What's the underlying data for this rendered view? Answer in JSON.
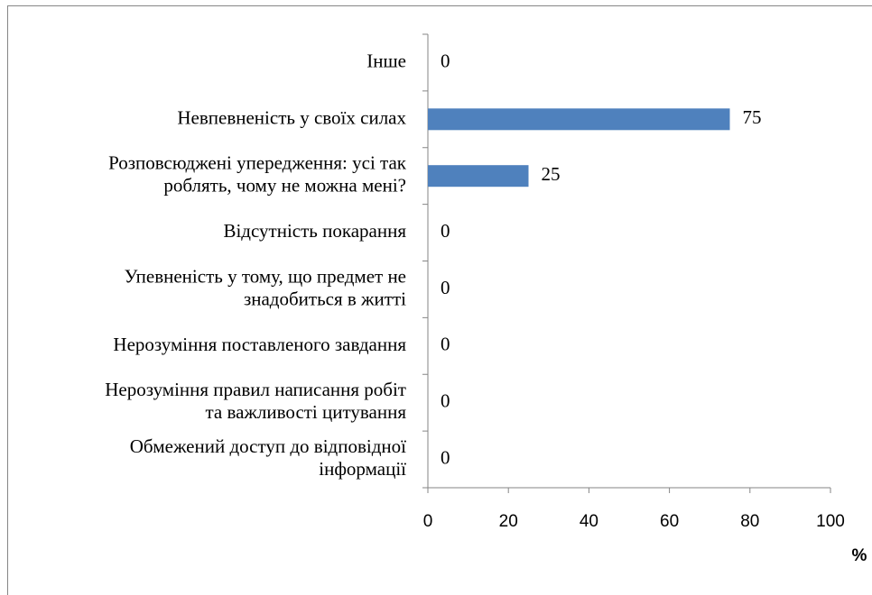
{
  "chart_data": {
    "type": "hbar",
    "categories": [
      "Інше",
      "Невпевненість у своїх силах",
      "Розповсюджені упередження: усі так\nроблять, чому не можна мені?",
      "Відсутність покарання",
      "Упевненість у тому, що предмет не\nзнадобиться в житті",
      "Нерозуміння поставленого завдання",
      "Нерозуміння правил написання робіт\nта важливості цитування",
      "Обмежений доступ до відповідної\nінформації"
    ],
    "values": [
      0,
      75,
      25,
      0,
      0,
      0,
      0,
      0
    ],
    "color": "#4f81bd",
    "xlabel": "%",
    "xlim": [
      0,
      100
    ],
    "xticks": [
      0,
      20,
      40,
      60,
      80,
      100
    ],
    "grid": false
  }
}
